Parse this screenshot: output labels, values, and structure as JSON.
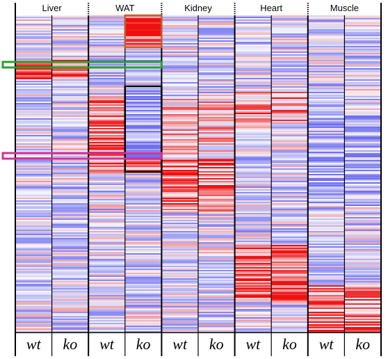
{
  "chart_data": {
    "type": "heatmap",
    "tissues": [
      "Liver",
      "WAT",
      "Kidney",
      "Heart",
      "Muscle"
    ],
    "genotypes": [
      "wt",
      "ko"
    ],
    "columns": [
      {
        "tissue": "Liver",
        "genotype": "wt"
      },
      {
        "tissue": "Liver",
        "genotype": "ko"
      },
      {
        "tissue": "WAT",
        "genotype": "wt"
      },
      {
        "tissue": "WAT",
        "genotype": "ko"
      },
      {
        "tissue": "Kidney",
        "genotype": "wt"
      },
      {
        "tissue": "Kidney",
        "genotype": "ko"
      },
      {
        "tissue": "Heart",
        "genotype": "wt"
      },
      {
        "tissue": "Heart",
        "genotype": "ko"
      },
      {
        "tissue": "Muscle",
        "genotype": "wt"
      },
      {
        "tissue": "Muscle",
        "genotype": "ko"
      }
    ],
    "color_scale": {
      "low": "#6f6ff0",
      "mid": "#f4f4fb",
      "high": "#f01010"
    },
    "highlight_colors": {
      "green": "#2aa02a",
      "magenta": "#d0309a",
      "orange": "#c06030",
      "black": "#000000"
    }
  }
}
